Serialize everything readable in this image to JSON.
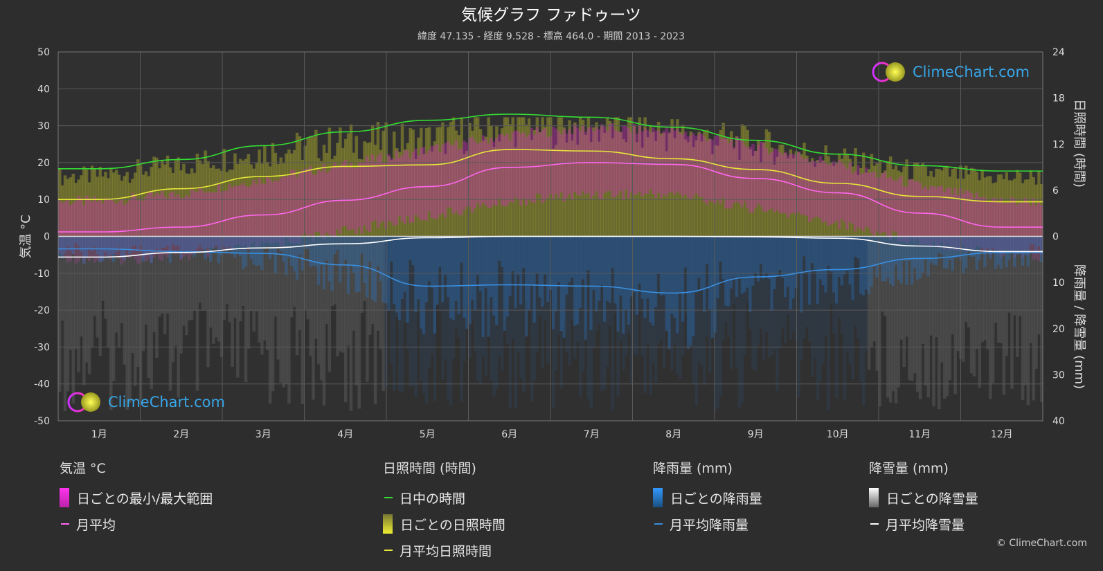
{
  "title": "気候グラフ ファドゥーツ",
  "subtitle": "緯度 47.135 - 経度 9.528 - 標高 464.0 - 期間 2013 - 2023",
  "left_axis_title": "気温 °C",
  "right_axis_top_title": "日照時間 (時間)",
  "right_axis_bottom_title": "降雨量 / 降雪量 (mm)",
  "logo_text": "ClimeChart.com",
  "copyright": "© ClimeChart.com",
  "colors": {
    "background": "#2d2d2d",
    "daylight": "#33dd33",
    "sunshine_avg": "#e8e83a",
    "sunshine_daily": "#c8c83a",
    "temp_avg": "#ff66ee",
    "temp_range": "#dd33cc",
    "rain_avg": "#3a8fe0",
    "rain_daily": "#2a78c8",
    "snow_avg": "#ffffff",
    "snow_daily": "#aaaaaa"
  },
  "legend": {
    "temperature": {
      "header": "気温 °C",
      "items": [
        {
          "label": "日ごとの最小/最大範囲",
          "icon": "magenta-range-swatch"
        },
        {
          "label": "月平均",
          "icon": "pink-line"
        }
      ]
    },
    "sunshine": {
      "header": "日照時間 (時間)",
      "items": [
        {
          "label": "日中の時間",
          "icon": "green-line"
        },
        {
          "label": "日ごとの日照時間",
          "icon": "yellow-bar-swatch"
        },
        {
          "label": "月平均日照時間",
          "icon": "yellow-line"
        }
      ]
    },
    "rain": {
      "header": "降雨量 (mm)",
      "items": [
        {
          "label": "日ごとの降雨量",
          "icon": "blue-bar-swatch"
        },
        {
          "label": "月平均降雨量",
          "icon": "blue-line"
        }
      ]
    },
    "snow": {
      "header": "降雪量 (mm)",
      "items": [
        {
          "label": "日ごとの降雪量",
          "icon": "white-bar-swatch"
        },
        {
          "label": "月平均降雪量",
          "icon": "white-line"
        }
      ]
    }
  },
  "chart_data": {
    "type": "line",
    "categories": [
      "1月",
      "2月",
      "3月",
      "4月",
      "5月",
      "6月",
      "7月",
      "8月",
      "9月",
      "10月",
      "11月",
      "12月"
    ],
    "y_left": {
      "min": -50,
      "max": 50,
      "ticks": [
        50,
        40,
        30,
        20,
        10,
        0,
        -10,
        -20,
        -30,
        -40,
        -50
      ]
    },
    "y_right_sunshine": {
      "min": 0,
      "max": 24,
      "ticks": [
        24,
        18,
        12,
        6,
        0
      ]
    },
    "y_right_precip": {
      "min": 0,
      "max": 40,
      "ticks": [
        0,
        10,
        20,
        30,
        40
      ]
    },
    "grid": true,
    "series": [
      {
        "name": "日中の時間",
        "axis": "sunshine_hours",
        "values": [
          8.8,
          10.0,
          11.8,
          13.6,
          15.1,
          15.9,
          15.5,
          14.2,
          12.5,
          10.7,
          9.2,
          8.5
        ]
      },
      {
        "name": "月平均日照時間",
        "axis": "sunshine_hours",
        "values": [
          4.8,
          6.2,
          7.8,
          9.1,
          9.3,
          11.3,
          11.1,
          10.1,
          8.7,
          6.9,
          5.2,
          4.5
        ]
      },
      {
        "name": "月平均",
        "axis": "temperature_c",
        "values": [
          1.2,
          2.5,
          5.8,
          9.8,
          13.5,
          18.7,
          20.0,
          19.5,
          15.7,
          11.8,
          6.3,
          2.5
        ]
      },
      {
        "name": "月平均降雨量",
        "axis": "precip_mm",
        "values": [
          2.7,
          3.3,
          3.7,
          6.2,
          10.8,
          10.5,
          10.8,
          12.3,
          8.8,
          7.2,
          4.8,
          3.5
        ]
      },
      {
        "name": "月平均降雪量",
        "axis": "precip_mm",
        "values": [
          4.5,
          3.5,
          2.5,
          1.6,
          0.3,
          0.0,
          0.0,
          0.0,
          0.1,
          0.4,
          2.1,
          3.3
        ]
      }
    ],
    "daily_temp_range_monthly": {
      "min": [
        -5,
        -4,
        -1,
        3,
        7,
        11,
        13,
        13,
        9,
        5,
        0,
        -3
      ],
      "max": [
        8,
        10,
        14,
        18,
        22,
        26,
        28,
        27,
        23,
        18,
        12,
        8
      ]
    }
  }
}
